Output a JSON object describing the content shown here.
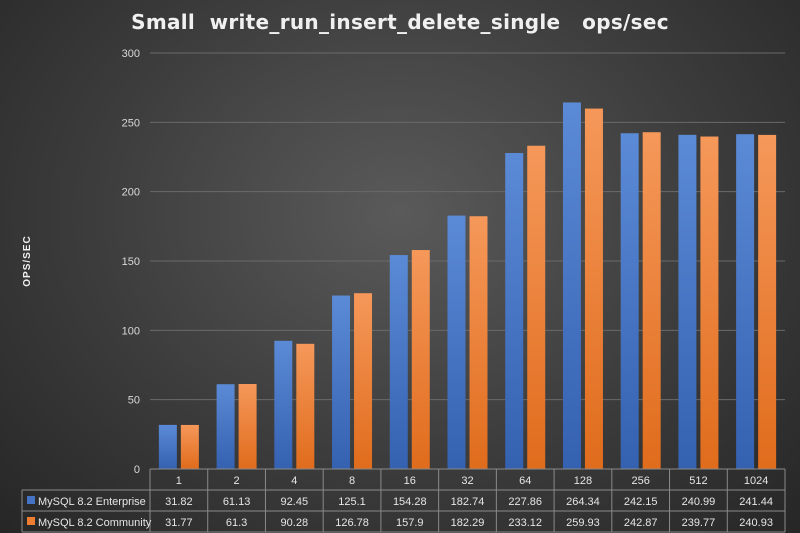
{
  "chart_data": {
    "type": "bar",
    "title": "Small  write_run_insert_delete_single   ops/sec",
    "ylabel": "OPS/SEC",
    "xlabel": "",
    "ylim": [
      0,
      300
    ],
    "yticks": [
      0,
      50,
      100,
      150,
      200,
      250,
      300
    ],
    "grid": true,
    "legend": "data-table",
    "categories": [
      "1",
      "2",
      "4",
      "8",
      "16",
      "32",
      "64",
      "128",
      "256",
      "512",
      "1024"
    ],
    "series": [
      {
        "name": "MySQL 8.2 Enterprise",
        "color": "#4472c4",
        "values": [
          31.82,
          61.13,
          92.45,
          125.1,
          154.28,
          182.74,
          227.86,
          264.34,
          242.15,
          240.99,
          241.44
        ]
      },
      {
        "name": "MySQL 8.2 Community",
        "color": "#ed7d31",
        "values": [
          31.77,
          61.3,
          90.28,
          126.78,
          157.9,
          182.29,
          233.12,
          259.93,
          242.87,
          239.77,
          240.93
        ]
      }
    ],
    "table_values": [
      [
        "31.82",
        "61.13",
        "92.45",
        "125.1",
        "154.28",
        "182.74",
        "227.86",
        "264.34",
        "242.15",
        "240.99",
        "241.44"
      ],
      [
        "31.77",
        "61.3",
        "90.28",
        "126.78",
        "157.9",
        "182.29",
        "233.12",
        "259.93",
        "242.87",
        "239.77",
        "240.93"
      ]
    ]
  }
}
